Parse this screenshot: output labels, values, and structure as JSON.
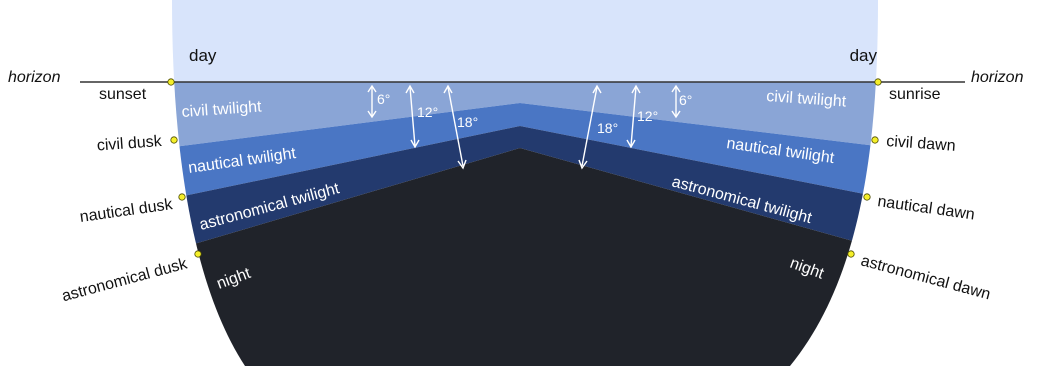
{
  "diagram": {
    "horizon_label_left": "horizon",
    "horizon_label_right": "horizon",
    "day_left": "day",
    "day_right": "day",
    "left_points": {
      "sunset": "sunset",
      "civil_dusk": "civil dusk",
      "nautical_dusk": "nautical dusk",
      "astronomical_dusk": "astronomical dusk"
    },
    "right_points": {
      "sunrise": "sunrise",
      "civil_dawn": "civil dawn",
      "nautical_dawn": "nautical dawn",
      "astronomical_dawn": "astronomical dawn"
    },
    "bands_left": {
      "civil": "civil twilight",
      "nautical": "nautical twilight",
      "astronomical": "astronomical twilight",
      "night": "night"
    },
    "bands_right": {
      "civil": "civil twilight",
      "nautical": "nautical twilight",
      "astronomical": "astronomical twilight",
      "night": "night"
    },
    "angles": {
      "six": "6°",
      "twelve": "12°",
      "eighteen": "18°"
    },
    "colors": {
      "day": "#d8e4fb",
      "civil": "#8aa5d6",
      "nautical": "#4a76c4",
      "astronomical": "#233a6e",
      "night": "#20232a",
      "marker": "#f5ef2a"
    }
  }
}
